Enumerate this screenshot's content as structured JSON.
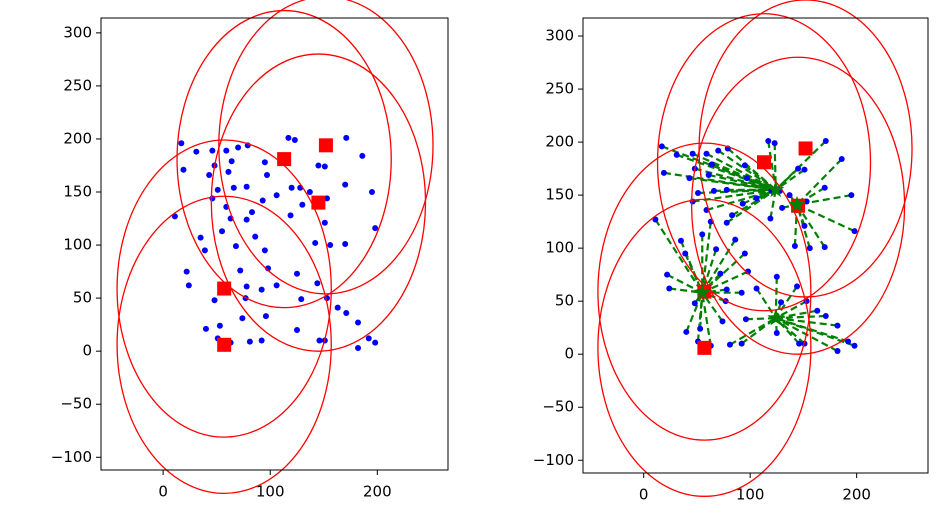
{
  "chart_data": [
    {
      "type": "scatter",
      "xlim": [
        -58,
        266
      ],
      "ylim": [
        -112,
        314
      ],
      "xticks": [
        0,
        100,
        200
      ],
      "yticks": [
        {
          "value": -100,
          "label": "−100"
        },
        {
          "value": -50,
          "label": "−50"
        },
        0,
        50,
        100,
        150,
        200,
        250,
        300
      ],
      "points": {
        "color": "#0000ff",
        "x": [
          17,
          19,
          31,
          46,
          59,
          70,
          79,
          48,
          64,
          43,
          61,
          95,
          117,
          123,
          171,
          186,
          151,
          145,
          97,
          51,
          66,
          78,
          120,
          128,
          137,
          170,
          195,
          153,
          106,
          93,
          46,
          59,
          83,
          130,
          11,
          63,
          78,
          119,
          151,
          170,
          198,
          35,
          55,
          68,
          86,
          95,
          142,
          156,
          39,
          22,
          72,
          98,
          125,
          106,
          78,
          92,
          24,
          144,
          77,
          129,
          153,
          163,
          48,
          74,
          96,
          171,
          182,
          40,
          51,
          63,
          81,
          92,
          125,
          146,
          151,
          182,
          192,
          198,
          53
        ],
        "y": [
          196,
          171,
          188,
          189,
          189,
          192,
          194,
          175,
          179,
          166,
          169,
          178,
          201,
          199,
          201,
          184,
          174,
          175,
          166,
          152,
          154,
          155,
          154,
          154,
          150,
          157,
          150,
          144,
          147,
          142,
          144,
          136,
          131,
          138,
          127,
          125,
          124,
          128,
          121,
          101,
          116,
          107,
          113,
          99,
          108,
          95,
          102,
          100,
          95,
          75,
          76,
          78,
          73,
          62,
          61,
          58,
          62,
          64,
          50,
          49,
          50,
          41,
          48,
          31,
          33,
          36,
          27,
          21,
          12,
          8,
          9,
          10,
          20,
          10,
          10,
          3,
          12,
          8,
          24
        ]
      },
      "centers": {
        "color": "#ff0000",
        "radius_x": 100,
        "radius_y": 140,
        "x": [
          57,
          57,
          113,
          152,
          145
        ],
        "y": [
          6,
          59,
          181,
          194,
          140
        ]
      }
    },
    {
      "type": "scatter",
      "xlim": [
        -57,
        267
      ],
      "ylim": [
        -112,
        317
      ],
      "xticks": [
        0,
        100,
        200
      ],
      "yticks": [
        {
          "value": -100,
          "label": "−100"
        },
        {
          "value": -50,
          "label": "−50"
        },
        0,
        50,
        100,
        150,
        200,
        250,
        300
      ],
      "points": {
        "color": "#0000ff",
        "x": [
          17,
          19,
          31,
          46,
          59,
          70,
          79,
          48,
          64,
          43,
          61,
          95,
          117,
          123,
          171,
          186,
          151,
          145,
          97,
          51,
          66,
          78,
          120,
          128,
          137,
          170,
          195,
          153,
          106,
          93,
          46,
          59,
          83,
          130,
          11,
          63,
          78,
          119,
          151,
          170,
          198,
          35,
          55,
          68,
          86,
          95,
          142,
          156,
          39,
          22,
          72,
          98,
          125,
          106,
          78,
          92,
          24,
          144,
          77,
          129,
          153,
          163,
          48,
          74,
          96,
          171,
          182,
          40,
          51,
          63,
          81,
          92,
          125,
          146,
          151,
          182,
          192,
          198,
          53
        ],
        "y": [
          196,
          171,
          188,
          189,
          189,
          192,
          194,
          175,
          179,
          166,
          169,
          178,
          201,
          199,
          201,
          184,
          174,
          175,
          166,
          152,
          154,
          155,
          154,
          154,
          150,
          157,
          150,
          144,
          147,
          142,
          144,
          136,
          131,
          138,
          127,
          125,
          124,
          128,
          121,
          101,
          116,
          107,
          113,
          99,
          108,
          95,
          102,
          100,
          95,
          75,
          76,
          78,
          73,
          62,
          61,
          58,
          62,
          64,
          50,
          49,
          50,
          41,
          48,
          31,
          33,
          36,
          27,
          21,
          12,
          8,
          9,
          10,
          20,
          10,
          10,
          3,
          12,
          8,
          24
        ]
      },
      "centers": {
        "color": "#ff0000",
        "radius_x": 100,
        "radius_y": 140,
        "x": [
          57,
          57,
          113,
          152,
          145
        ],
        "y": [
          6,
          59,
          181,
          194,
          140
        ]
      },
      "hubs": {
        "color": "#008000",
        "x": [
          55,
          144,
          124,
          124
        ],
        "y": [
          58,
          141,
          155,
          34
        ]
      }
    }
  ]
}
